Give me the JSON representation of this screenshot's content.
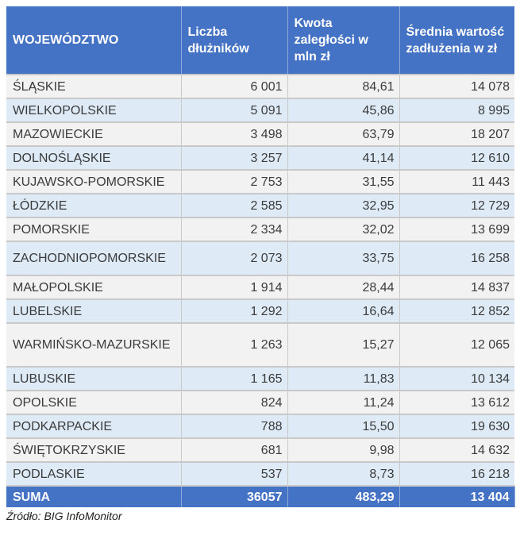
{
  "table": {
    "headers": [
      "WOJEWÓDZTWO",
      "Liczba dłużników",
      "Kwota zaległości w mln zł",
      "Średnia wartość zadłużenia w zł"
    ],
    "rows": [
      [
        "ŚLĄSKIE",
        "6 001",
        "84,61",
        "14 078"
      ],
      [
        "WIELKOPOLSKIE",
        "5 091",
        "45,86",
        "8 995"
      ],
      [
        "MAZOWIECKIE",
        "3 498",
        "63,79",
        "18 207"
      ],
      [
        "DOLNOŚLĄSKIE",
        "3 257",
        "41,14",
        "12 610"
      ],
      [
        "KUJAWSKO-POMORSKIE",
        "2 753",
        "31,55",
        "11 443"
      ],
      [
        "ŁÓDZKIE",
        "2 585",
        "32,95",
        "12 729"
      ],
      [
        "POMORSKIE",
        "2 334",
        "32,02",
        "13 699"
      ],
      [
        "ZACHODNIOPOMORSKIE",
        "2 073",
        "33,75",
        "16 258"
      ],
      [
        "MAŁOPOLSKIE",
        "1 914",
        "28,44",
        "14 837"
      ],
      [
        "LUBELSKIE",
        "1 292",
        "16,64",
        "12 852"
      ],
      [
        "WARMIŃSKO-MAZURSKIE",
        "1 263",
        "15,27",
        "12 065"
      ],
      [
        "LUBUSKIE",
        "1 165",
        "11,83",
        "10 134"
      ],
      [
        "OPOLSKIE",
        "824",
        "11,24",
        "13 612"
      ],
      [
        "PODKARPACKIE",
        "788",
        "15,50",
        "19 630"
      ],
      [
        "ŚWIĘTOKRZYSKIE",
        "681",
        "9,98",
        "14 632"
      ],
      [
        "PODLASKIE",
        "537",
        "8,73",
        "16 218"
      ]
    ],
    "total": [
      "SUMA",
      "36057",
      "483,29",
      "13 404"
    ]
  },
  "source": "Źródło: BIG InfoMonitor",
  "colors": {
    "header": "#4472c4",
    "row_odd": "#f2f2f2",
    "row_even": "#deebf7"
  }
}
